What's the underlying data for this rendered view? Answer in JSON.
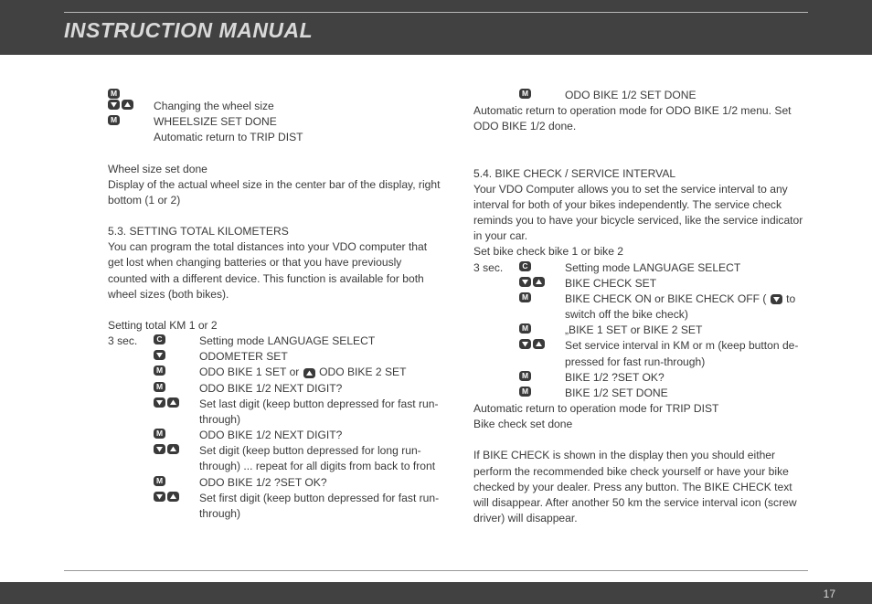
{
  "header_title": "INSTRUCTION MANUAL",
  "page_number": "17",
  "icons": {
    "M": "M",
    "C": "C",
    "down": "▼",
    "up": "▲"
  },
  "left": {
    "top_steps": [
      {
        "icons": [
          "M"
        ],
        "text": ""
      },
      {
        "icons": [
          "down",
          "up"
        ],
        "text": "Changing the wheel size"
      },
      {
        "icons": [
          "M"
        ],
        "text": "WHEELSIZE SET DONE"
      },
      {
        "icons": [],
        "text": "Automatic return to TRIP DIST"
      }
    ],
    "wheel_done_1": "Wheel size set done",
    "wheel_done_2": "Display of the actual wheel size in the center bar of the display, right bottom (1 or 2)",
    "sec53_title": "5.3. SETTING TOTAL KILOMETERS",
    "sec53_para": "You can program the total distances into your VDO computer that get lost when changing batteries or that you have previously counted with a different device. This function is available for both wheel sizes (both bikes).",
    "sec53_setting": "Setting total KM 1 or 2",
    "sec53_prefix": "3 sec.",
    "sec53_steps": [
      {
        "icons": [
          "C"
        ],
        "text": "Setting mode LANGUAGE SELECT"
      },
      {
        "icons": [
          "down"
        ],
        "text": "ODOMETER SET"
      },
      {
        "icons": [
          "M"
        ],
        "text_pre": "ODO BIKE 1 SET or ",
        "inline_icon": "up",
        "text_post": " ODO BIKE 2 SET"
      },
      {
        "icons": [
          "M"
        ],
        "text": "ODO BIKE 1/2 NEXT DIGIT?"
      },
      {
        "icons": [
          "down",
          "up"
        ],
        "text": "Set last digit (keep button depressed for fast run-through)"
      },
      {
        "icons": [
          "M"
        ],
        "text": "ODO BIKE 1/2 NEXT DIGIT?"
      },
      {
        "icons": [
          "down",
          "up"
        ],
        "text": "Set digit (keep button depressed for long run-through) ... repeat for all digits from back to front"
      },
      {
        "icons": [
          "M"
        ],
        "text": "ODO BIKE 1/2 ?SET OK?"
      },
      {
        "icons": [
          "down",
          "up"
        ],
        "text": "Set first digit (keep button depressed for fast run-through)"
      }
    ]
  },
  "right": {
    "top_step": {
      "icons": [
        "M"
      ],
      "text": "ODO BIKE 1/2 SET DONE"
    },
    "top_para": "Automatic return to operation mode for ODO BIKE 1/2 menu. Set ODO BIKE 1/2 done.",
    "sec54_title": "5.4. BIKE CHECK / SERVICE INTERVAL",
    "sec54_para": "Your VDO Computer allows you to set the service interval to any interval for both of your bikes independently. The service check reminds you to have your bicycle serviced, like the service indicator in your car.",
    "sec54_setting": "Set bike check bike 1 or bike 2",
    "sec54_prefix": "3 sec.",
    "sec54_steps": [
      {
        "icons": [
          "C"
        ],
        "text": "Setting mode LANGUAGE SELECT"
      },
      {
        "icons": [
          "down",
          "up"
        ],
        "text": "BIKE CHECK SET"
      },
      {
        "icons": [
          "M"
        ],
        "text_pre": "BIKE CHECK ON or BIKE CHECK OFF ( ",
        "inline_icon": "down",
        "text_post": " to switch off the bike check)"
      },
      {
        "icons": [
          "M"
        ],
        "text": "„BIKE 1 SET or BIKE 2 SET"
      },
      {
        "icons": [
          "down",
          "up"
        ],
        "text": "Set service interval in KM or m (keep button de-pressed for fast run-through)"
      },
      {
        "icons": [
          "M"
        ],
        "text": "BIKE 1/2 ?SET OK?"
      },
      {
        "icons": [
          "M"
        ],
        "text": "BIKE 1/2 SET DONE"
      }
    ],
    "after1": "Automatic return to operation mode for TRIP DIST",
    "after2": "Bike check set done",
    "closing": "If BIKE CHECK is shown in the display then you should either perform the recommended bike check yourself or have your bike checked by your dealer. Press any button. The BIKE CHECK text will disappear. After another 50 km the service interval icon (screw driver) will disappear."
  }
}
